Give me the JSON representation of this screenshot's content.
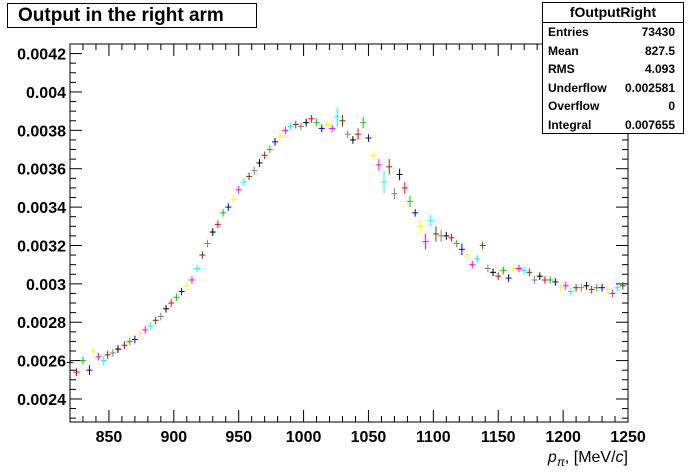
{
  "chart_data": {
    "type": "scatter",
    "title": "Output in the right arm",
    "xlabel": "p_{π}, [MeV/c]",
    "xlabel_parts": {
      "p": "p",
      "sub": "π",
      "rest": ", [MeV/",
      "c": "c",
      "close": "]"
    },
    "ylabel": "",
    "xlim": [
      820,
      1250
    ],
    "ylim": [
      0.00228,
      0.00425
    ],
    "x_ticks": [
      "850",
      "900",
      "950",
      "1000",
      "1050",
      "1100",
      "1150",
      "1200",
      "1250"
    ],
    "y_ticks": [
      "0.0024",
      "0.0026",
      "0.0028",
      "0.003",
      "0.0032",
      "0.0034",
      "0.0036",
      "0.0038",
      "0.004",
      "0.0042"
    ],
    "grid": false,
    "stats": {
      "name": "fOutputRight",
      "rows": [
        {
          "label": "Entries",
          "value": "73430"
        },
        {
          "label": "Mean",
          "value": "827.5"
        },
        {
          "label": "RMS",
          "value": "4.093"
        },
        {
          "label": "Underflow",
          "value": "0.002581"
        },
        {
          "label": "Overflow",
          "value": "0"
        },
        {
          "label": "Integral",
          "value": "0.007655"
        }
      ]
    },
    "series_colors": [
      "#000000",
      "#ff0000",
      "#00cc00",
      "#0000cc",
      "#ffff00",
      "#ff00ff",
      "#00ffff",
      "#7a3a00",
      "#808080"
    ],
    "points": [
      [
        820,
        0.00259,
        2.5e-05
      ],
      [
        825,
        0.00254,
        2e-05
      ],
      [
        830,
        0.0026,
        2e-05
      ],
      [
        835,
        0.00255,
        2.5e-05
      ],
      [
        838,
        0.00265,
        2e-05
      ],
      [
        842,
        0.00262,
        2e-05
      ],
      [
        846,
        0.0026,
        2.5e-05
      ],
      [
        849,
        0.00263,
        2e-05
      ],
      [
        853,
        0.00264,
        2e-05
      ],
      [
        857,
        0.00266,
        2e-05
      ],
      [
        862,
        0.00268,
        2e-05
      ],
      [
        866,
        0.0027,
        2e-05
      ],
      [
        870,
        0.00271,
        2e-05
      ],
      [
        874,
        0.00274,
        2e-05
      ],
      [
        878,
        0.00276,
        2e-05
      ],
      [
        882,
        0.00278,
        2e-05
      ],
      [
        886,
        0.00281,
        2e-05
      ],
      [
        890,
        0.00283,
        2e-05
      ],
      [
        894,
        0.00287,
        2e-05
      ],
      [
        898,
        0.0029,
        2e-05
      ],
      [
        902,
        0.00293,
        2e-05
      ],
      [
        906,
        0.00296,
        2e-05
      ],
      [
        910,
        0.00299,
        2e-05
      ],
      [
        914,
        0.00302,
        2e-05
      ],
      [
        918,
        0.00308,
        2e-05
      ],
      [
        922,
        0.00315,
        2e-05
      ],
      [
        926,
        0.00321,
        2e-05
      ],
      [
        930,
        0.00327,
        2e-05
      ],
      [
        934,
        0.00331,
        2e-05
      ],
      [
        938,
        0.00337,
        2e-05
      ],
      [
        942,
        0.0034,
        2e-05
      ],
      [
        946,
        0.00344,
        2e-05
      ],
      [
        950,
        0.00349,
        2e-05
      ],
      [
        954,
        0.00353,
        2e-05
      ],
      [
        958,
        0.00356,
        2e-05
      ],
      [
        962,
        0.00359,
        2e-05
      ],
      [
        966,
        0.00363,
        2e-05
      ],
      [
        970,
        0.00367,
        2e-05
      ],
      [
        974,
        0.0037,
        2e-05
      ],
      [
        978,
        0.00374,
        2e-05
      ],
      [
        982,
        0.00377,
        2e-05
      ],
      [
        986,
        0.0038,
        2e-05
      ],
      [
        990,
        0.00382,
        2e-05
      ],
      [
        994,
        0.00383,
        2e-05
      ],
      [
        998,
        0.00382,
        2e-05
      ],
      [
        1002,
        0.00384,
        2e-05
      ],
      [
        1006,
        0.00386,
        2e-05
      ],
      [
        1010,
        0.00384,
        2e-05
      ],
      [
        1014,
        0.00381,
        2e-05
      ],
      [
        1018,
        0.00383,
        2e-05
      ],
      [
        1022,
        0.00381,
        2e-05
      ],
      [
        1026,
        0.00387,
        5e-05
      ],
      [
        1030,
        0.00385,
        3e-05
      ],
      [
        1034,
        0.00378,
        2e-05
      ],
      [
        1038,
        0.00375,
        2e-05
      ],
      [
        1042,
        0.00378,
        3e-05
      ],
      [
        1046,
        0.00384,
        3e-05
      ],
      [
        1050,
        0.00376,
        2e-05
      ],
      [
        1054,
        0.00367,
        2e-05
      ],
      [
        1058,
        0.00362,
        3e-05
      ],
      [
        1062,
        0.00353,
        6e-05
      ],
      [
        1066,
        0.00361,
        4e-05
      ],
      [
        1070,
        0.00347,
        3e-05
      ],
      [
        1074,
        0.00357,
        3e-05
      ],
      [
        1078,
        0.0035,
        3e-05
      ],
      [
        1082,
        0.00343,
        3e-05
      ],
      [
        1086,
        0.00337,
        2e-05
      ],
      [
        1090,
        0.0033,
        4e-05
      ],
      [
        1094,
        0.00322,
        4e-05
      ],
      [
        1098,
        0.00333,
        3e-05
      ],
      [
        1102,
        0.00326,
        4e-05
      ],
      [
        1106,
        0.00325,
        3e-05
      ],
      [
        1110,
        0.00325,
        2e-05
      ],
      [
        1114,
        0.00324,
        2e-05
      ],
      [
        1118,
        0.00321,
        2e-05
      ],
      [
        1122,
        0.00318,
        3e-05
      ],
      [
        1126,
        0.00315,
        2e-05
      ],
      [
        1130,
        0.0031,
        2e-05
      ],
      [
        1134,
        0.00313,
        2e-05
      ],
      [
        1138,
        0.0032,
        2e-05
      ],
      [
        1142,
        0.00308,
        2e-05
      ],
      [
        1146,
        0.00306,
        2e-05
      ],
      [
        1150,
        0.00304,
        2e-05
      ],
      [
        1154,
        0.00307,
        2e-05
      ],
      [
        1158,
        0.00303,
        2e-05
      ],
      [
        1162,
        0.00308,
        2e-05
      ],
      [
        1166,
        0.00308,
        2e-05
      ],
      [
        1170,
        0.00307,
        2e-05
      ],
      [
        1174,
        0.00306,
        2e-05
      ],
      [
        1178,
        0.00302,
        2e-05
      ],
      [
        1182,
        0.00304,
        2e-05
      ],
      [
        1186,
        0.00302,
        2e-05
      ],
      [
        1190,
        0.00302,
        2e-05
      ],
      [
        1194,
        0.00301,
        2e-05
      ],
      [
        1198,
        0.00298,
        2e-05
      ],
      [
        1202,
        0.00299,
        2e-05
      ],
      [
        1206,
        0.00296,
        2e-05
      ],
      [
        1210,
        0.00298,
        2e-05
      ],
      [
        1214,
        0.00298,
        2e-05
      ],
      [
        1218,
        0.00299,
        2e-05
      ],
      [
        1222,
        0.00297,
        2e-05
      ],
      [
        1226,
        0.00298,
        2e-05
      ],
      [
        1230,
        0.00298,
        2e-05
      ],
      [
        1234,
        0.00297,
        2e-05
      ],
      [
        1238,
        0.00295,
        2e-05
      ],
      [
        1242,
        0.00298,
        2e-05
      ],
      [
        1246,
        0.00299,
        2e-05
      ]
    ]
  }
}
